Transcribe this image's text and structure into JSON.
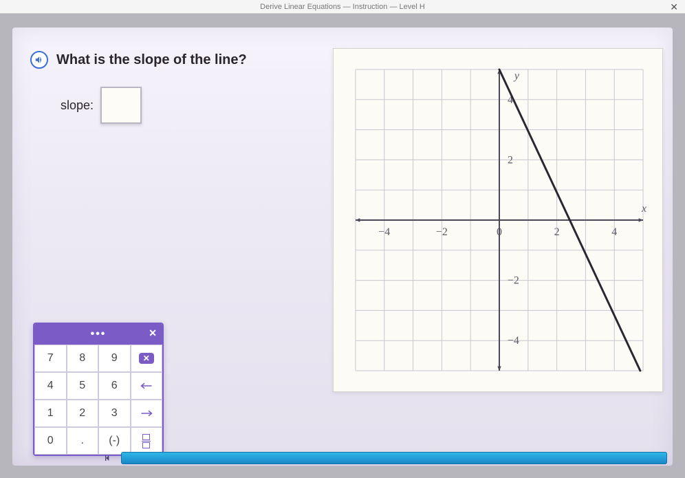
{
  "tab": {
    "title": "Derive Linear Equations — Instruction — Level H",
    "close": "✕"
  },
  "question": {
    "text": "What is the slope of the line?"
  },
  "answer": {
    "label": "slope:",
    "value": ""
  },
  "keypad": {
    "header_dots": "•••",
    "close": "✕",
    "rows": [
      [
        "7",
        "8",
        "9",
        "⌫"
      ],
      [
        "4",
        "5",
        "6",
        "←"
      ],
      [
        "1",
        "2",
        "3",
        "→"
      ],
      [
        "0",
        ".",
        "(-)",
        "frac"
      ]
    ]
  },
  "graph": {
    "x_axis_label": "x",
    "y_axis_label": "y",
    "xlim": [
      -5,
      5
    ],
    "ylim": [
      -5,
      5
    ],
    "grid_step": 1,
    "x_ticks": [
      -4,
      -2,
      0,
      2,
      4
    ],
    "y_ticks": [
      -4,
      -2,
      2,
      4
    ],
    "grid_color": "#c9c6d0",
    "axis_color": "#4b4856",
    "tick_num_color": "#5a5a66",
    "bg_color": "#fcfbf5",
    "line": {
      "color": "#2b2630",
      "width": 3,
      "points": [
        [
          0,
          5
        ],
        [
          4.9,
          -5
        ]
      ]
    }
  },
  "colors": {
    "accent": "#7b5cc7",
    "panel_bg": "#fcfbf5",
    "work_bg_top": "#f6f3fb",
    "work_bg_bot": "#e4e0ed",
    "progress": "#2fb6e8"
  }
}
